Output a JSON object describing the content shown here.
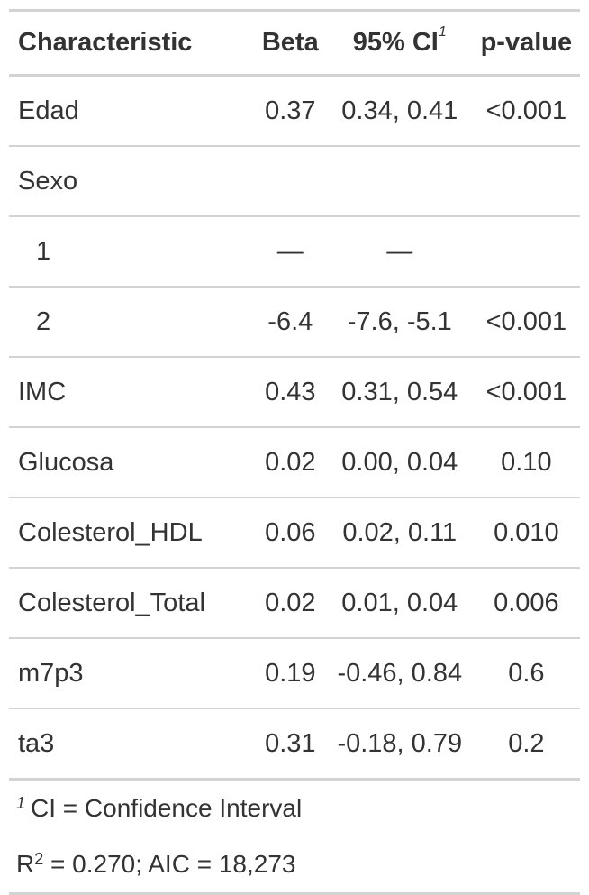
{
  "table": {
    "headers": {
      "characteristic": "Characteristic",
      "beta": "Beta",
      "ci": "95% CI",
      "ci_footnote_mark": "1",
      "pvalue": "p-value"
    },
    "rows": [
      {
        "label": "Edad",
        "beta": "0.37",
        "ci": "0.34, 0.41",
        "p": "<0.001"
      },
      {
        "label": "Sexo",
        "beta": "",
        "ci": "",
        "p": ""
      },
      {
        "label": "1",
        "beta": "—",
        "ci": "—",
        "p": ""
      },
      {
        "label": "2",
        "beta": "-6.4",
        "ci": "-7.6, -5.1",
        "p": "<0.001"
      },
      {
        "label": "IMC",
        "beta": "0.43",
        "ci": "0.31, 0.54",
        "p": "<0.001"
      },
      {
        "label": "Glucosa",
        "beta": "0.02",
        "ci": "0.00, 0.04",
        "p": "0.10"
      },
      {
        "label": "Colesterol_HDL",
        "beta": "0.06",
        "ci": "0.02, 0.11",
        "p": "0.010"
      },
      {
        "label": "Colesterol_Total",
        "beta": "0.02",
        "ci": "0.01, 0.04",
        "p": "0.006"
      },
      {
        "label": "m7p3",
        "beta": "0.19",
        "ci": "-0.46, 0.84",
        "p": "0.6"
      },
      {
        "label": "ta3",
        "beta": "0.31",
        "ci": "-0.18, 0.79",
        "p": "0.2"
      }
    ]
  },
  "footer": {
    "footnote_mark": "1",
    "footnote_text": "CI = Confidence Interval",
    "stats_r": "R",
    "stats_sup": "2",
    "stats_text": " = 0.270; AIC = 18,273"
  },
  "colors": {
    "rule": "#d3d3d3",
    "text": "#333333"
  }
}
